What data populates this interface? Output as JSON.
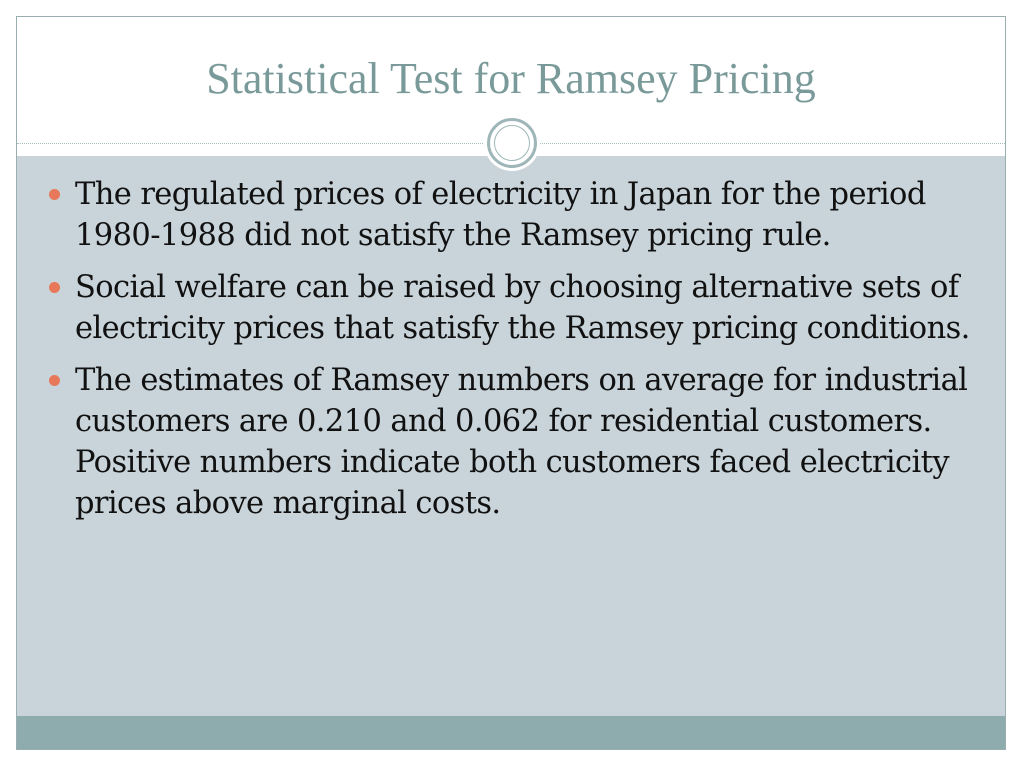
{
  "slide": {
    "title": "Statistical Test for Ramsey Pricing",
    "bullets": [
      "The regulated prices of electricity in Japan for the period 1980-1988 did not satisfy the Ramsey pricing rule.",
      "Social welfare can be raised by choosing alternative sets of electricity prices that satisfy the Ramsey pricing conditions.",
      "The estimates of Ramsey numbers on average for industrial customers are 0.210 and 0.062 for residential customers. Positive numbers indicate both customers faced electricity prices above marginal costs."
    ]
  },
  "colors": {
    "title_text": "#7a9a99",
    "content_background": "#c8d4da",
    "footer_bar": "#8eacae",
    "bullet_marker": "#e8785a",
    "ornament_ring": "#9eb6b8"
  },
  "icons": {
    "ornament": "double-circle-ornament-icon",
    "bullet": "round-bullet-icon"
  }
}
